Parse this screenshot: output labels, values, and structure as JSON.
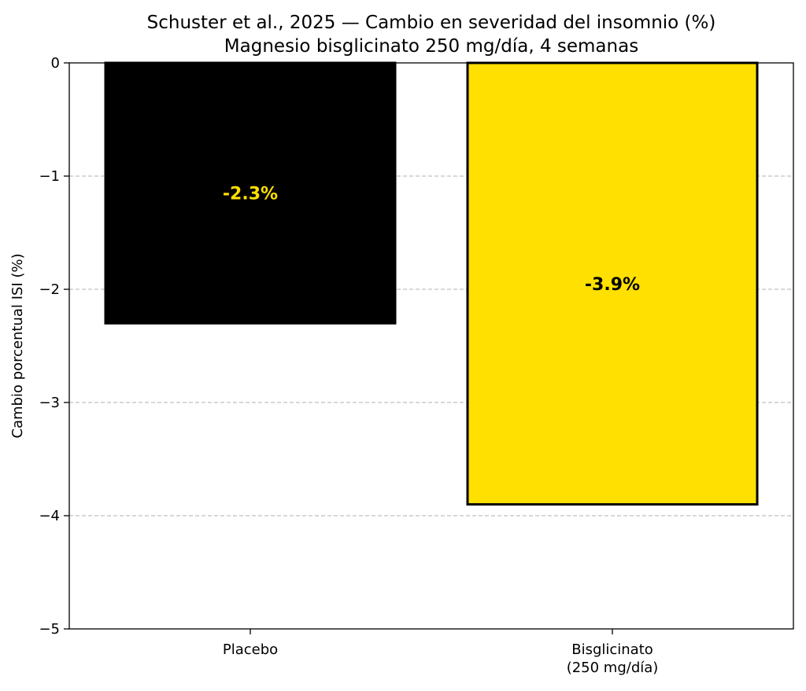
{
  "chart_data": {
    "type": "bar",
    "title": "Schuster et al., 2025 — Cambio en severidad del insomnio (%)",
    "subtitle": "Magnesio bisglicinato 250 mg/día, 4 semanas",
    "xlabel": "",
    "ylabel": "Cambio porcentual ISI (%)",
    "ylim": [
      -5,
      0
    ],
    "yticks": [
      0,
      -1,
      -2,
      -3,
      -4,
      -5
    ],
    "ytick_labels": [
      "0",
      "−1",
      "−2",
      "−3",
      "−4",
      "−5"
    ],
    "grid": "y-dashed",
    "categories": [
      {
        "label": "Placebo",
        "label_lines": [
          "Placebo"
        ]
      },
      {
        "label": "Bisglicinato (250 mg/día)",
        "label_lines": [
          "Bisglicinato",
          "(250 mg/día)"
        ]
      }
    ],
    "values": [
      -2.3,
      -3.9
    ],
    "data_labels": [
      "-2.3%",
      "-3.9%"
    ],
    "bar_colors": [
      "#000000",
      "#FFE000"
    ],
    "bar_edge_colors": [
      "#000000",
      "#000000"
    ],
    "label_colors": [
      "#FFE000",
      "#000000"
    ]
  }
}
